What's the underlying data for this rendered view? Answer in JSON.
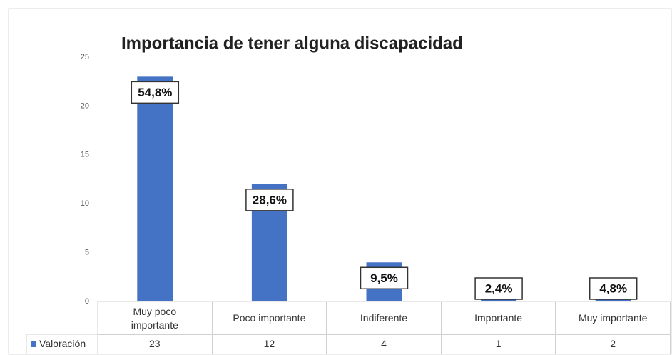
{
  "chart_data": {
    "type": "bar",
    "title": "Importancia de tener alguna discapacidad",
    "categories": [
      "Muy poco importante",
      "Poco importante",
      "Indiferente",
      "Importante",
      "Muy importante"
    ],
    "series": [
      {
        "name": "Valoración",
        "color": "#4472c4",
        "values": [
          23,
          12,
          4,
          1,
          2
        ]
      }
    ],
    "data_labels": [
      "54,8%",
      "28,6%",
      "9,5%",
      "2,4%",
      "4,8%"
    ],
    "ylim": [
      0,
      25
    ],
    "yticks": [
      0,
      5,
      10,
      15,
      20,
      25
    ],
    "grid": false,
    "data_table": true
  }
}
